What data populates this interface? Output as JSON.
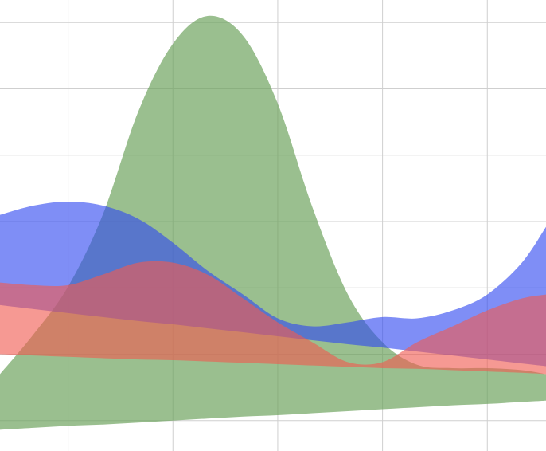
{
  "chart_data": {
    "type": "area",
    "x": [
      0.35,
      0.67,
      1,
      1.33,
      1.67,
      2,
      2.33,
      2.67,
      3,
      3.33,
      3.67,
      4,
      4.33,
      4.67,
      5,
      5.33,
      5.56
    ],
    "xlim": [
      0.35,
      5.56
    ],
    "ylim": [
      -0.46,
      6.34
    ],
    "xticks": [
      1,
      2,
      3,
      4,
      5
    ],
    "yticks": [
      0,
      1,
      2,
      3,
      4,
      5,
      6
    ],
    "grid": true,
    "series": [
      {
        "color": "#6aa05a",
        "opacity": 0.68,
        "values": [
          0.7,
          1.3,
          2.02,
          3.1,
          4.66,
          5.68,
          6.1,
          5.8,
          4.78,
          3.22,
          1.9,
          1.18,
          0.84,
          0.79,
          0.79,
          0.76,
          0.7
        ],
        "lower": [
          -0.14,
          -0.11,
          -0.08,
          -0.06,
          -0.03,
          0.0,
          0.03,
          0.06,
          0.08,
          0.11,
          0.14,
          0.17,
          0.2,
          0.23,
          0.25,
          0.28,
          0.3
        ]
      },
      {
        "color": "#3048f0",
        "opacity": 0.62,
        "values": [
          3.1,
          3.24,
          3.3,
          3.24,
          3.04,
          2.68,
          2.26,
          1.9,
          1.54,
          1.42,
          1.48,
          1.56,
          1.54,
          1.66,
          1.9,
          2.38,
          2.92
        ],
        "lower": [
          1.74,
          1.68,
          1.62,
          1.56,
          1.5,
          1.45,
          1.39,
          1.33,
          1.27,
          1.21,
          1.15,
          1.1,
          1.04,
          0.98,
          0.92,
          0.86,
          0.82
        ]
      },
      {
        "color": "#f05a50",
        "opacity": 0.62,
        "values": [
          2.08,
          2.04,
          2.04,
          2.2,
          2.38,
          2.38,
          2.2,
          1.84,
          1.48,
          1.18,
          0.88,
          0.88,
          1.18,
          1.42,
          1.66,
          1.84,
          1.9
        ],
        "lower": [
          1.0,
          0.98,
          0.96,
          0.94,
          0.92,
          0.91,
          0.89,
          0.87,
          0.85,
          0.83,
          0.81,
          0.79,
          0.78,
          0.76,
          0.74,
          0.72,
          0.7
        ]
      }
    ]
  }
}
